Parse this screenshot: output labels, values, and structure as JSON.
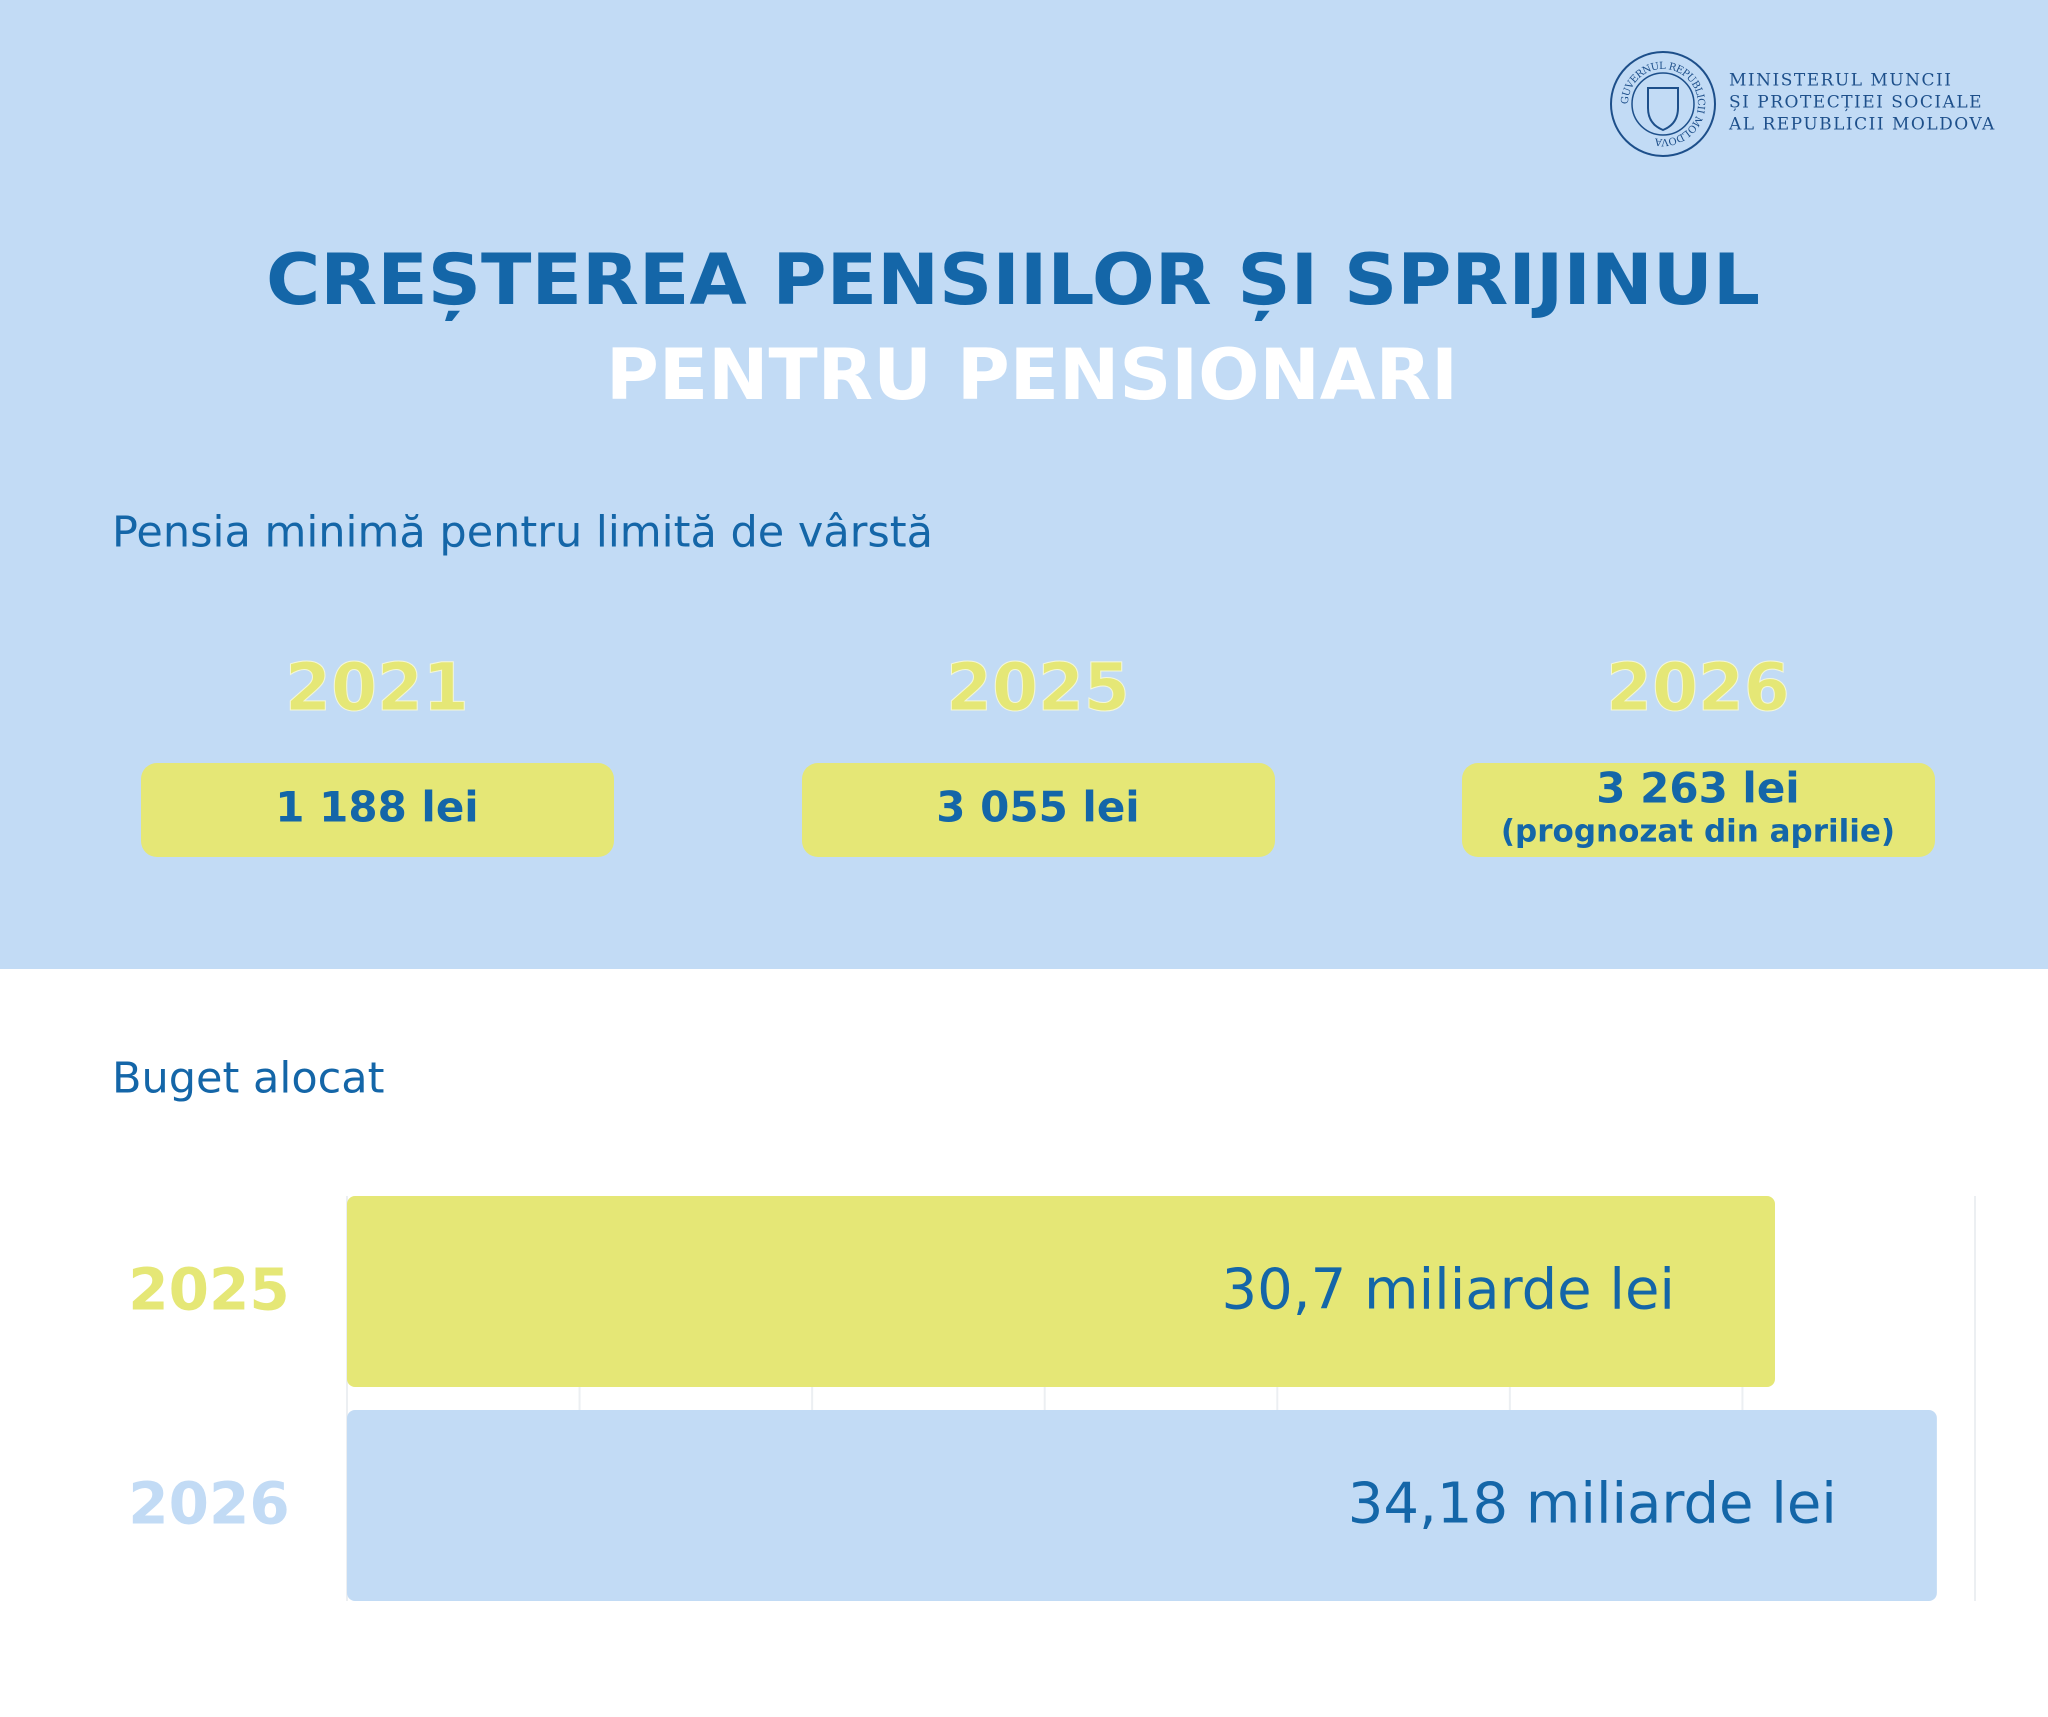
{
  "header": {
    "logo_ring": "GUVERNUL REPUBLICII MOLDOVA",
    "ministry": [
      "MINISTERUL MUNCII",
      "ȘI PROTECȚIEI SOCIALE",
      "AL REPUBLICII MOLDOVA"
    ]
  },
  "title": {
    "line1": "CREȘTEREA PENSIILOR ȘI SPRIJINUL",
    "line2": "PENTRU PENSIONARI"
  },
  "pension": {
    "heading": "Pensia minimă pentru limită de vârstă",
    "items": [
      {
        "year": "2021",
        "amount": "1 188 lei"
      },
      {
        "year": "2025",
        "amount": "3 055 lei"
      },
      {
        "year": "2026",
        "amount": "3 263 lei",
        "note": "(prognozat din aprilie)"
      }
    ]
  },
  "chart_data": {
    "type": "barh",
    "title": "Buget alocat",
    "categories": [
      "2025",
      "2026"
    ],
    "values": [
      30.7,
      34.18
    ],
    "value_labels": [
      "30,7 miliarde lei",
      "34,18 miliarde lei"
    ],
    "colors": [
      "#e5e776",
      "#c2dbf5"
    ],
    "xlim": [
      0,
      35
    ],
    "xticks": [
      0,
      5,
      10,
      15,
      20,
      25,
      30,
      35
    ],
    "grid": true
  }
}
